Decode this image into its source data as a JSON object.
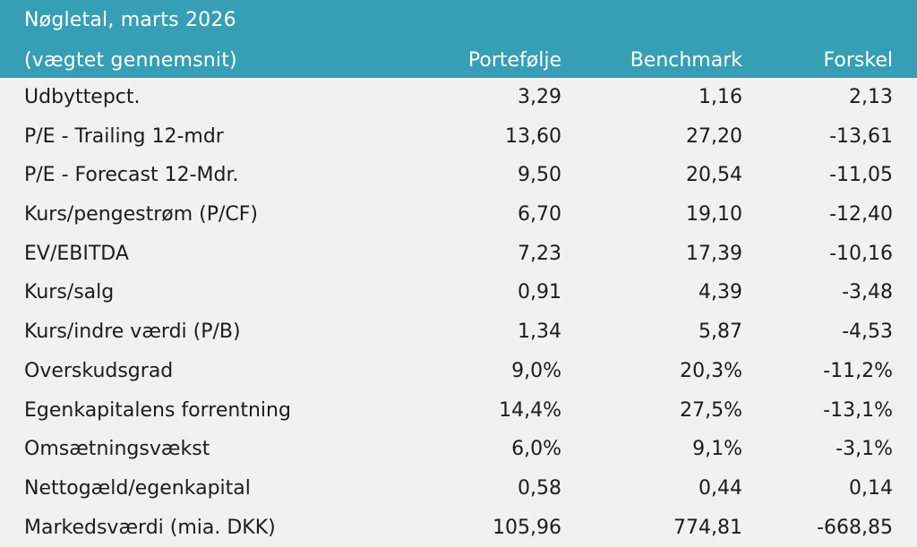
{
  "header": {
    "title": "Nøgletal, marts 2026",
    "subtitle": "(vægtet gennemsnit)",
    "columns": [
      "Portefølje",
      "Benchmark",
      "Forskel"
    ]
  },
  "rows": [
    {
      "label": "Udbyttepct.",
      "portefolje": "3,29",
      "benchmark": "1,16",
      "forskel": "2,13"
    },
    {
      "label": "P/E - Trailing 12-mdr",
      "portefolje": "13,60",
      "benchmark": "27,20",
      "forskel": "-13,61"
    },
    {
      "label": "P/E - Forecast 12-Mdr.",
      "portefolje": "9,50",
      "benchmark": "20,54",
      "forskel": "-11,05"
    },
    {
      "label": "Kurs/pengestrøm (P/CF)",
      "portefolje": "6,70",
      "benchmark": "19,10",
      "forskel": "-12,40"
    },
    {
      "label": "EV/EBITDA",
      "portefolje": "7,23",
      "benchmark": "17,39",
      "forskel": "-10,16"
    },
    {
      "label": "Kurs/salg",
      "portefolje": "0,91",
      "benchmark": "4,39",
      "forskel": "-3,48"
    },
    {
      "label": "Kurs/indre værdi (P/B)",
      "portefolje": "1,34",
      "benchmark": "5,87",
      "forskel": "-4,53"
    },
    {
      "label": "Overskudsgrad",
      "portefolje": "9,0%",
      "benchmark": "20,3%",
      "forskel": "-11,2%"
    },
    {
      "label": "Egenkapitalens forrentning",
      "portefolje": "14,4%",
      "benchmark": "27,5%",
      "forskel": "-13,1%"
    },
    {
      "label": "Omsætningsvækst",
      "portefolje": "6,0%",
      "benchmark": "9,1%",
      "forskel": "-3,1%"
    },
    {
      "label": "Nettogæld/egenkapital",
      "portefolje": "0,58",
      "benchmark": "0,44",
      "forskel": "0,14"
    },
    {
      "label": "Markedsværdi (mia. DKK)",
      "portefolje": "105,96",
      "benchmark": "774,81",
      "forskel": "-668,85"
    }
  ],
  "colors": {
    "header_bg": "#369fb5",
    "body_bg": "#f1f1f1"
  }
}
